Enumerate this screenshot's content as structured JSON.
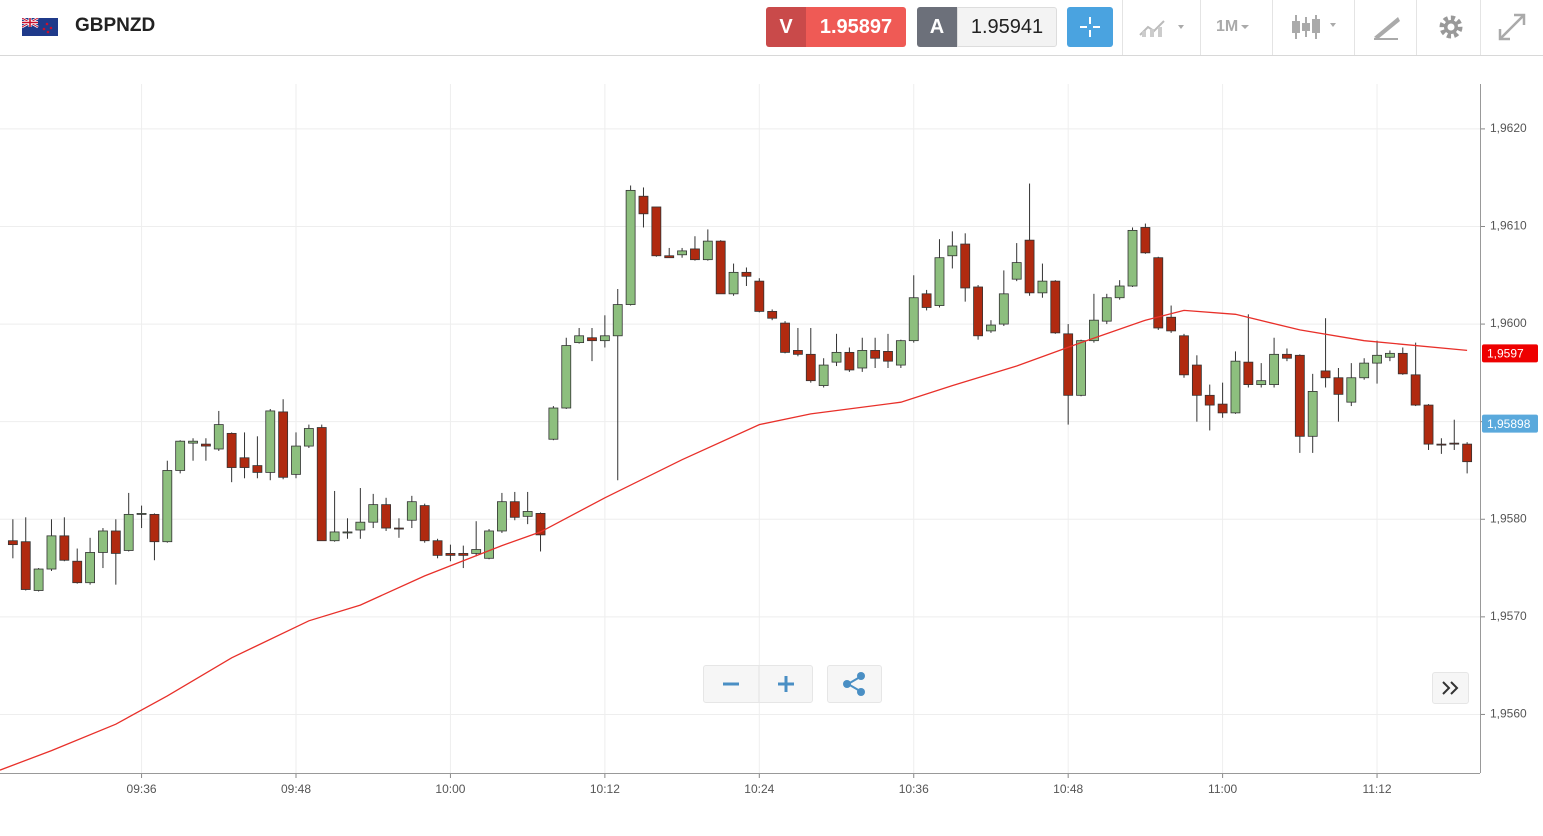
{
  "header": {
    "symbol": "GBPNZD",
    "sell_label": "V",
    "sell_price": "1.95897",
    "buy_label": "A",
    "buy_price": "1.95941",
    "timeframe": "1M"
  },
  "chart_data": {
    "type": "candlestick",
    "x": [
      "09:26",
      "09:27",
      "09:28",
      "09:29",
      "09:30",
      "09:31",
      "09:32",
      "09:33",
      "09:34",
      "09:35",
      "09:36",
      "09:37",
      "09:38",
      "09:39",
      "09:40",
      "09:41",
      "09:42",
      "09:43",
      "09:44",
      "09:45",
      "09:46",
      "09:47",
      "09:48",
      "09:49",
      "09:50",
      "09:51",
      "09:52",
      "09:53",
      "09:54",
      "09:55",
      "09:56",
      "09:57",
      "09:58",
      "09:59",
      "10:00",
      "10:01",
      "10:02",
      "10:03",
      "10:04",
      "10:05",
      "10:06",
      "10:07",
      "10:08",
      "10:09",
      "10:10",
      "10:11",
      "10:12",
      "10:13",
      "10:14",
      "10:15",
      "10:16",
      "10:17",
      "10:18",
      "10:19",
      "10:20",
      "10:21",
      "10:22",
      "10:23",
      "10:24",
      "10:25",
      "10:26",
      "10:27",
      "10:28",
      "10:29",
      "10:30",
      "10:31",
      "10:32",
      "10:33",
      "10:34",
      "10:35",
      "10:36",
      "10:37",
      "10:38",
      "10:39",
      "10:40",
      "10:41",
      "10:42",
      "10:43",
      "10:44",
      "10:45",
      "10:46",
      "10:47",
      "10:48",
      "10:49",
      "10:50",
      "10:51",
      "10:52",
      "10:53",
      "10:54",
      "10:55",
      "10:56",
      "10:57",
      "10:58",
      "10:59",
      "11:00",
      "11:01",
      "11:02",
      "11:03",
      "11:04",
      "11:05",
      "11:06",
      "11:07",
      "11:08",
      "11:09",
      "11:10",
      "11:11",
      "11:12",
      "11:13",
      "11:14",
      "11:15",
      "11:16",
      "11:17",
      "11:18",
      "11:19"
    ],
    "open": [
      1.95778,
      1.95777,
      1.95727,
      1.95749,
      1.95783,
      1.95757,
      1.95735,
      1.95766,
      1.95788,
      1.95768,
      1.95806,
      1.95805,
      1.95777,
      1.9585,
      1.95878,
      1.95877,
      1.95872,
      1.95888,
      1.95863,
      1.95855,
      1.95848,
      1.9591,
      1.95846,
      1.95875,
      1.95894,
      1.95778,
      1.95787,
      1.95789,
      1.95797,
      1.95815,
      1.95791,
      1.95799,
      1.95814,
      1.95778,
      1.95765,
      1.95765,
      1.95765,
      1.9576,
      1.95788,
      1.95818,
      1.95803,
      1.95806,
      1.95882,
      1.95914,
      1.95981,
      1.95986,
      1.95983,
      1.95988,
      1.9602,
      1.96131,
      1.9612,
      1.9607,
      1.96071,
      1.96077,
      1.96066,
      1.96085,
      1.96031,
      1.96053,
      1.96044,
      1.96013,
      1.96001,
      1.95973,
      1.95969,
      1.95937,
      1.95961,
      1.95971,
      1.95955,
      1.95973,
      1.95972,
      1.95958,
      1.95983,
      1.96031,
      1.96019,
      1.9607,
      1.96082,
      1.96038,
      1.95993,
      1.96,
      1.96046,
      1.96086,
      1.96032,
      1.96044,
      1.9599,
      1.95927,
      1.95983,
      1.96003,
      1.96027,
      1.96039,
      1.96099,
      1.96068,
      1.96007,
      1.95988,
      1.95958,
      1.95927,
      1.95918,
      1.95909,
      1.95961,
      1.95938,
      1.95938,
      1.95969,
      1.95968,
      1.95885,
      1.95952,
      1.95945,
      1.9592,
      1.95945,
      1.9596,
      1.95966,
      1.9597,
      1.95948,
      1.95917,
      1.95877,
      1.95878,
      1.95877
    ],
    "high": [
      1.958,
      1.95802,
      1.9575,
      1.958,
      1.95802,
      1.9577,
      1.95781,
      1.95791,
      1.958,
      1.95827,
      1.95814,
      1.95806,
      1.9586,
      1.95881,
      1.95883,
      1.95883,
      1.95911,
      1.95889,
      1.95889,
      1.95885,
      1.95913,
      1.95923,
      1.95889,
      1.95897,
      1.95897,
      1.95829,
      1.95801,
      1.95832,
      1.95826,
      1.95822,
      1.95801,
      1.95824,
      1.95816,
      1.9578,
      1.95774,
      1.95773,
      1.95798,
      1.9579,
      1.95827,
      1.95828,
      1.95828,
      1.95807,
      1.95916,
      1.95986,
      1.95996,
      1.95996,
      1.96009,
      1.96036,
      1.96142,
      1.9614,
      1.9612,
      1.96078,
      1.96078,
      1.9609,
      1.96097,
      1.96086,
      1.96062,
      1.96058,
      1.96047,
      1.96015,
      1.96003,
      1.95996,
      1.95996,
      1.95965,
      1.9599,
      1.95976,
      1.95986,
      1.95986,
      1.9599,
      1.95984,
      1.9605,
      1.96035,
      1.96087,
      1.96095,
      1.96093,
      1.9604,
      1.96004,
      1.96055,
      1.96083,
      1.96144,
      1.96062,
      1.96045,
      1.96,
      1.95984,
      1.96031,
      1.96031,
      1.96045,
      1.96099,
      1.96103,
      1.96069,
      1.96019,
      1.9599,
      1.95968,
      1.95938,
      1.9594,
      1.95972,
      1.9601,
      1.9596,
      1.95986,
      1.95975,
      1.95969,
      1.95949,
      1.96006,
      1.95955,
      1.9596,
      1.95965,
      1.95983,
      1.95973,
      1.95976,
      1.95981,
      1.95918,
      1.95883,
      1.95902,
      1.95879
    ],
    "low": [
      1.9576,
      1.95727,
      1.95726,
      1.95747,
      1.95757,
      1.95734,
      1.95733,
      1.9575,
      1.95733,
      1.95767,
      1.95791,
      1.95758,
      1.95776,
      1.95847,
      1.9586,
      1.9586,
      1.9587,
      1.95838,
      1.95842,
      1.95842,
      1.9584,
      1.95841,
      1.95842,
      1.95873,
      1.95778,
      1.95777,
      1.9578,
      1.9578,
      1.95791,
      1.95788,
      1.95781,
      1.95791,
      1.95776,
      1.9576,
      1.95757,
      1.9575,
      1.95762,
      1.95759,
      1.95786,
      1.95799,
      1.95795,
      1.95767,
      1.95881,
      1.95913,
      1.9598,
      1.95962,
      1.95976,
      1.9584,
      1.96019,
      1.96099,
      1.96069,
      1.96068,
      1.96068,
      1.96065,
      1.96065,
      1.96031,
      1.96029,
      1.96039,
      1.96012,
      1.96004,
      1.9597,
      1.95967,
      1.9594,
      1.95935,
      1.95957,
      1.95951,
      1.95951,
      1.95955,
      1.95955,
      1.95955,
      1.95981,
      1.96014,
      1.96017,
      1.96057,
      1.96023,
      1.95984,
      1.95991,
      1.95998,
      1.96044,
      1.96029,
      1.96027,
      1.9599,
      1.95897,
      1.95926,
      1.95981,
      1.96,
      1.96025,
      1.96038,
      1.96072,
      1.95994,
      1.95991,
      1.95945,
      1.959,
      1.95891,
      1.95904,
      1.95908,
      1.95935,
      1.95935,
      1.95935,
      1.95962,
      1.95868,
      1.95868,
      1.95935,
      1.959,
      1.95916,
      1.95943,
      1.95939,
      1.95962,
      1.95948,
      1.95916,
      1.95871,
      1.95867,
      1.95871,
      1.95847
    ],
    "close": [
      1.95774,
      1.95728,
      1.95749,
      1.95783,
      1.95758,
      1.95735,
      1.95766,
      1.95788,
      1.95765,
      1.95805,
      1.95806,
      1.95777,
      1.9585,
      1.9588,
      1.9588,
      1.95875,
      1.95897,
      1.95853,
      1.95853,
      1.95848,
      1.95911,
      1.95843,
      1.95875,
      1.95893,
      1.95778,
      1.95787,
      1.95787,
      1.95797,
      1.95815,
      1.95791,
      1.9579,
      1.95818,
      1.95778,
      1.95763,
      1.95763,
      1.95763,
      1.95769,
      1.95788,
      1.95818,
      1.95802,
      1.95808,
      1.95784,
      1.95914,
      1.95978,
      1.95988,
      1.95983,
      1.95988,
      1.9602,
      1.96137,
      1.96113,
      1.9607,
      1.96068,
      1.96075,
      1.96066,
      1.96085,
      1.96031,
      1.96053,
      1.96049,
      1.96013,
      1.96006,
      1.95971,
      1.95969,
      1.95942,
      1.95958,
      1.95971,
      1.95953,
      1.95973,
      1.95965,
      1.95962,
      1.95983,
      1.96027,
      1.96017,
      1.96068,
      1.9608,
      1.96037,
      1.95988,
      1.95999,
      1.96031,
      1.96063,
      1.96032,
      1.96044,
      1.95991,
      1.95927,
      1.95983,
      1.96004,
      1.96027,
      1.96039,
      1.96096,
      1.96073,
      1.95996,
      1.95993,
      1.95948,
      1.95927,
      1.95917,
      1.95909,
      1.95962,
      1.95938,
      1.95942,
      1.95969,
      1.95965,
      1.95885,
      1.95931,
      1.95945,
      1.95928,
      1.95945,
      1.9596,
      1.95968,
      1.9597,
      1.95949,
      1.95917,
      1.95877,
      1.95876,
      1.95877,
      1.95859
    ],
    "up_color": "#8dbf7e",
    "down_color": "#b02a10",
    "moving_average": {
      "color": "#e8302a",
      "x": [
        "09:25",
        "09:29",
        "09:34",
        "09:38",
        "09:43",
        "09:49",
        "09:53",
        "09:58",
        "10:04",
        "10:07",
        "10:12",
        "10:18",
        "10:24",
        "10:28",
        "10:35",
        "10:39",
        "10:44",
        "10:49",
        "10:54",
        "10:57",
        "11:01",
        "11:06",
        "11:11",
        "11:19"
      ],
      "values": [
        1.95543,
        1.95563,
        1.9559,
        1.95619,
        1.95658,
        1.95696,
        1.95712,
        1.95742,
        1.95773,
        1.95787,
        1.95822,
        1.95861,
        1.95897,
        1.95908,
        1.9592,
        1.95937,
        1.95957,
        1.95981,
        1.96004,
        1.96014,
        1.9601,
        1.95994,
        1.95983,
        1.95973
      ]
    },
    "xlim": [
      "09:25",
      "11:20"
    ],
    "xticks": [
      "09:36",
      "09:48",
      "10:00",
      "10:12",
      "10:24",
      "10:36",
      "10:48",
      "11:00",
      "11:12"
    ],
    "ylim": [
      1.9554,
      1.96246
    ],
    "yticks": [
      {
        "value": 1.956,
        "label": "1,9560"
      },
      {
        "value": 1.957,
        "label": "1,9570"
      },
      {
        "value": 1.958,
        "label": "1,9580"
      },
      {
        "value": 1.959,
        "label": "1,9590"
      },
      {
        "value": 1.96,
        "label": "1,9600"
      },
      {
        "value": 1.961,
        "label": "1,9610"
      },
      {
        "value": 1.962,
        "label": "1,9620"
      }
    ],
    "price_tags": [
      {
        "value": 1.9597,
        "label": "1,9597",
        "color": "#ee0000"
      },
      {
        "value": 1.95898,
        "label": "1,95898",
        "color": "#5aa9dc"
      }
    ],
    "grid": true
  }
}
